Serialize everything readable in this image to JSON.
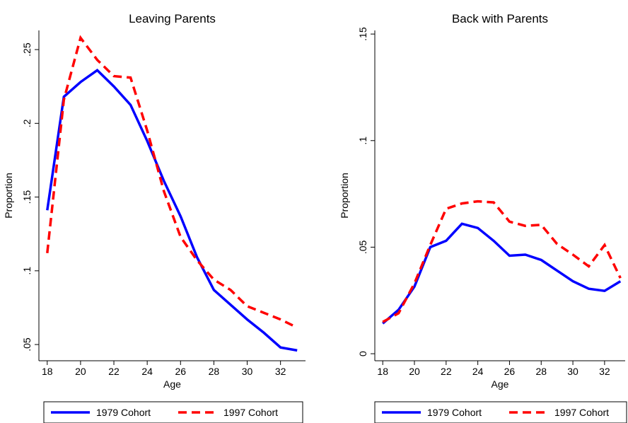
{
  "chart_data": [
    {
      "type": "line",
      "title": "Leaving Parents",
      "x_label": "Age",
      "y_label": "Proportion",
      "x": [
        18,
        19,
        20,
        21,
        22,
        23,
        24,
        25,
        26,
        27,
        28,
        29,
        30,
        31,
        32,
        33
      ],
      "series": [
        {
          "name": "1979 Cohort",
          "color": "#0000ff",
          "dash": "solid",
          "values": [
            0.141,
            0.218,
            0.228,
            0.236,
            0.225,
            0.2125,
            0.188,
            0.161,
            0.137,
            0.109,
            0.087,
            0.077,
            0.067,
            0.058,
            0.048,
            0.046
          ]
        },
        {
          "name": "1997 Cohort",
          "color": "#ff0000",
          "dash": "dashed",
          "values": [
            0.112,
            0.216,
            0.258,
            0.243,
            0.232,
            0.231,
            0.195,
            0.154,
            0.123,
            0.107,
            0.094,
            0.087,
            0.076,
            0.0715,
            0.067,
            0.0615
          ]
        }
      ],
      "xlim": [
        17.5,
        33.5
      ],
      "xticks": [
        18,
        20,
        22,
        24,
        26,
        28,
        30,
        32
      ],
      "ylim": [
        0.039,
        0.263
      ],
      "yticks": [
        {
          "value": 0.05,
          "label": ".05"
        },
        {
          "value": 0.1,
          "label": ".1"
        },
        {
          "value": 0.15,
          "label": ".15"
        },
        {
          "value": 0.2,
          "label": ".2"
        },
        {
          "value": 0.25,
          "label": ".25"
        }
      ],
      "legend": "bottom"
    },
    {
      "type": "line",
      "title": "Back with Parents",
      "x_label": "Age",
      "y_label": "Proportion",
      "x": [
        18,
        19,
        20,
        21,
        22,
        23,
        24,
        25,
        26,
        27,
        28,
        29,
        30,
        31,
        32,
        33
      ],
      "series": [
        {
          "name": "1979 Cohort",
          "color": "#0000ff",
          "dash": "solid",
          "values": [
            0.0142,
            0.0206,
            0.0315,
            0.05,
            0.053,
            0.061,
            0.059,
            0.053,
            0.046,
            0.0465,
            0.044,
            0.039,
            0.034,
            0.0305,
            0.0295,
            0.034
          ]
        },
        {
          "name": "1997 Cohort",
          "color": "#ff0000",
          "dash": "dashed",
          "values": [
            0.0149,
            0.019,
            0.033,
            0.051,
            0.068,
            0.0705,
            0.0715,
            0.071,
            0.062,
            0.06,
            0.0605,
            0.0515,
            0.0465,
            0.041,
            0.051,
            0.0355
          ]
        }
      ],
      "xlim": [
        17.5,
        33.3
      ],
      "xticks": [
        18,
        20,
        22,
        24,
        26,
        28,
        30,
        32
      ],
      "ylim": [
        -0.0033,
        0.1517
      ],
      "yticks": [
        0,
        {
          "value": 0.05,
          "label": ".05"
        },
        {
          "value": 0.1,
          "label": ".1"
        },
        {
          "value": 0.15,
          "label": ".15"
        }
      ],
      "legend": "bottom"
    }
  ]
}
